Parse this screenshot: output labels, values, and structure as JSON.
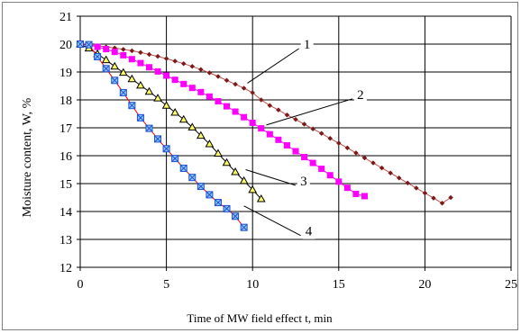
{
  "chart_data": {
    "type": "line",
    "title": "",
    "xlabel": "Time of MW field effect t, min",
    "ylabel": "Moisture content, W, %",
    "xlim": [
      0,
      25
    ],
    "ylim": [
      12,
      21
    ],
    "xticks": [
      "0",
      "5",
      "10",
      "15",
      "20",
      "25"
    ],
    "yticks": [
      "12",
      "13",
      "14",
      "15",
      "16",
      "17",
      "18",
      "19",
      "20",
      "21"
    ],
    "grid": true,
    "legend": "none",
    "series": [
      {
        "name": "1",
        "marker": "diamond",
        "color": "#7b1a1a",
        "line_color": "#c0504d",
        "x": [
          0,
          0.5,
          1,
          1.5,
          2,
          2.5,
          3,
          3.5,
          4,
          4.5,
          5,
          5.5,
          6,
          6.5,
          7,
          7.5,
          8,
          8.5,
          9,
          9.5,
          10,
          10.5,
          11,
          11.5,
          12,
          12.5,
          13,
          13.5,
          14,
          14.5,
          15,
          15.5,
          16,
          16.5,
          17,
          17.5,
          18,
          18.5,
          19,
          19.5,
          20,
          20.5,
          21,
          21.5
        ],
        "y": [
          20,
          19.97,
          19.94,
          19.9,
          19.86,
          19.81,
          19.76,
          19.7,
          19.63,
          19.56,
          19.48,
          19.39,
          19.3,
          19.2,
          19.09,
          18.97,
          18.84,
          18.7,
          18.56,
          18.42,
          18.26,
          18.0,
          17.8,
          17.64,
          17.46,
          17.3,
          17.13,
          16.96,
          16.8,
          16.62,
          16.45,
          16.28,
          16.1,
          15.92,
          15.74,
          15.56,
          15.38,
          15.2,
          15.02,
          14.84,
          14.66,
          14.48,
          14.3,
          14.5
        ]
      },
      {
        "name": "2",
        "marker": "square",
        "color": "#ff00ff",
        "line_color": "#ff00ff",
        "x": [
          0,
          0.5,
          1,
          1.5,
          2,
          2.5,
          3,
          3.5,
          4,
          4.5,
          5,
          5.5,
          6,
          6.5,
          7,
          7.5,
          8,
          8.5,
          9,
          9.5,
          10,
          10.5,
          11,
          11.5,
          12,
          12.5,
          13,
          13.5,
          14,
          14.5,
          15,
          15.5,
          16,
          16.5
        ],
        "y": [
          20,
          19.96,
          19.9,
          19.82,
          19.72,
          19.6,
          19.46,
          19.32,
          19.17,
          19.02,
          18.87,
          18.72,
          18.57,
          18.43,
          18.28,
          18.12,
          17.95,
          17.77,
          17.58,
          17.38,
          17.18,
          16.98,
          16.77,
          16.57,
          16.37,
          16.16,
          15.95,
          15.74,
          15.53,
          15.3,
          15.07,
          14.85,
          14.63,
          14.55
        ]
      },
      {
        "name": "3",
        "marker": "triangle",
        "color": "#000000",
        "fill": "#ffff66",
        "line_color": "#000000",
        "x": [
          0,
          0.5,
          1,
          1.5,
          2,
          2.5,
          3,
          3.5,
          4,
          4.5,
          5,
          5.5,
          6,
          6.5,
          7,
          7.5,
          8,
          8.5,
          9,
          9.5,
          10,
          10.5
        ],
        "y": [
          20,
          19.85,
          19.65,
          19.43,
          19.2,
          18.98,
          18.75,
          18.52,
          18.3,
          18.06,
          17.8,
          17.55,
          17.3,
          17.02,
          16.72,
          16.42,
          16.08,
          15.75,
          15.42,
          15.1,
          14.78,
          14.45
        ]
      },
      {
        "name": "4",
        "marker": "x-square",
        "color": "#1f4fd0",
        "fill": "#8ec8ff",
        "line_color": "#ff0000",
        "x": [
          0,
          0.5,
          1,
          1.5,
          2,
          2.5,
          3,
          3.5,
          4,
          4.5,
          5,
          5.5,
          6,
          6.5,
          7,
          7.5,
          8,
          8.5,
          9,
          9.5
        ],
        "y": [
          20,
          19.98,
          19.55,
          19.12,
          18.7,
          18.26,
          17.8,
          17.36,
          16.98,
          16.6,
          16.25,
          15.9,
          15.55,
          15.22,
          14.9,
          14.6,
          14.32,
          14.1,
          13.83,
          13.43
        ]
      }
    ],
    "annotations": [
      {
        "label": "1",
        "point_x": 9.7,
        "point_y": 18.6,
        "text_x": 12.9,
        "text_y": 20.0
      },
      {
        "label": "2",
        "point_x": 10.8,
        "point_y": 17.1,
        "text_x": 16.0,
        "text_y": 18.2
      },
      {
        "label": "3",
        "point_x": 9.6,
        "point_y": 15.5,
        "text_x": 12.7,
        "text_y": 15.1
      },
      {
        "label": "4",
        "point_x": 9.5,
        "point_y": 14.2,
        "text_x": 13.0,
        "text_y": 13.3
      }
    ]
  }
}
